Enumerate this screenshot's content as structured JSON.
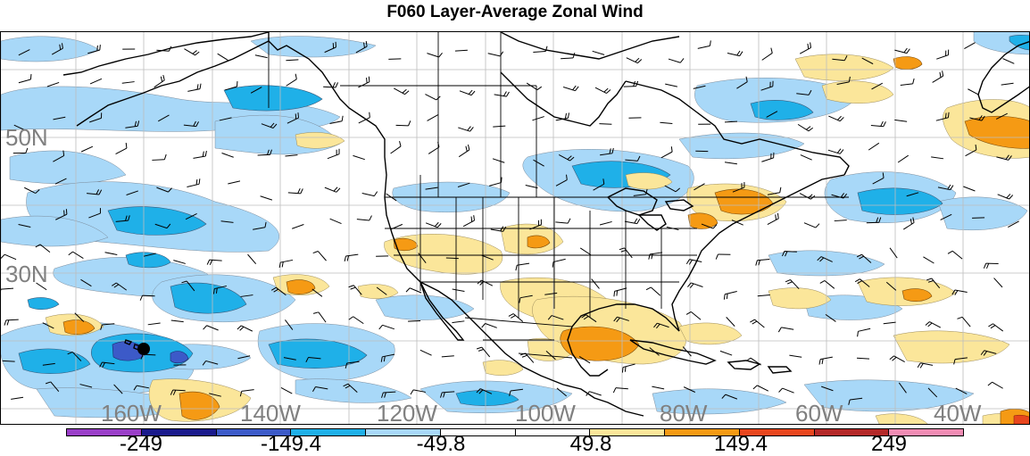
{
  "title": "F060 Layer-Average Zonal Wind",
  "map": {
    "lat_labels": [
      "50N",
      "30N"
    ],
    "lon_labels": [
      "160W",
      "140W",
      "120W",
      "100W",
      "80W",
      "60W",
      "40W"
    ],
    "marker": "point-marker"
  },
  "colorbar": {
    "colors": [
      "#9a3fc8",
      "#1a1a8c",
      "#3c5ac8",
      "#1fb0e8",
      "#a8d8f8",
      "#ffffff",
      "#ffffff",
      "#fbe69a",
      "#f59a14",
      "#e8461e",
      "#b42828",
      "#f08cb4"
    ],
    "labels": [
      "-249",
      "-149.4",
      "-49.8",
      "49.8",
      "149.4",
      "249"
    ]
  },
  "legend_colors": {
    "light_blue": "#a8d8f8",
    "blue": "#1fb0e8",
    "dark_blue": "#3c5ac8",
    "light_yellow": "#fbe69a",
    "orange": "#f59a14",
    "red": "#e8461e"
  }
}
